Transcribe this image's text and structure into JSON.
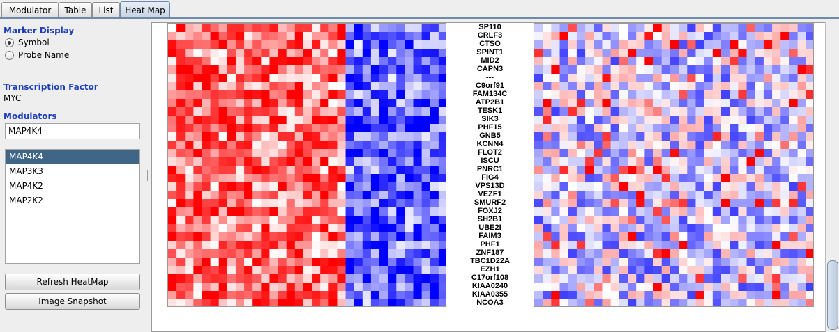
{
  "tabs": [
    {
      "label": "Modulator",
      "active": false
    },
    {
      "label": "Table",
      "active": false
    },
    {
      "label": "List",
      "active": false
    },
    {
      "label": "Heat Map",
      "active": true
    }
  ],
  "marker_display": {
    "title": "Marker Display",
    "options": [
      {
        "label": "Symbol",
        "selected": true
      },
      {
        "label": "Probe Name",
        "selected": false
      }
    ]
  },
  "transcription_factor": {
    "title": "Transcription Factor",
    "value": "MYC"
  },
  "modulators": {
    "title": "Modulators",
    "input_value": "MAP4K4",
    "items": [
      "MAP4K4",
      "MAP3K3",
      "MAP4K2",
      "MAP2K2"
    ],
    "selected_index": 0
  },
  "buttons": {
    "refresh": "Refresh HeatMap",
    "snapshot": "Image Snapshot"
  },
  "genes": [
    "SP110",
    "CRLF3",
    "CTSO",
    "SPINT1",
    "MID2",
    "CAPN3",
    "---",
    "C9orf91",
    "FAM134C",
    "ATP2B1",
    "TESK1",
    "SIK3",
    "PHF15",
    "GNB5",
    "KCNN4",
    "FLOT2",
    "ISCU",
    "PNRC1",
    "FIG4",
    "VPS13D",
    "VEZF1",
    "SMURF2",
    "FOXJ2",
    "SH2B1",
    "UBE2I",
    "FAIM3",
    "PHF1",
    "ZNF187",
    "TBC1D22A",
    "EZH1",
    "C17orf108",
    "KIAA0240",
    "KIAA0355",
    "NCOA3"
  ],
  "colors": {
    "high": "#ff0000",
    "low": "#0000ff",
    "mid": "#ffffff",
    "accent": "#1f3fb8",
    "selection": "#3f6587"
  }
}
